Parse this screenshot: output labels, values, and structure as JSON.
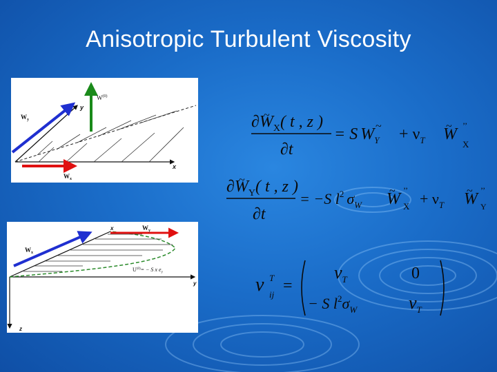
{
  "slide": {
    "title": "Anisotropic Turbulent Viscosity"
  },
  "figure_top": {
    "label_w_top": "W",
    "label_w_top_sup": "(0)",
    "label_wy": "W",
    "label_wy_sub": "y",
    "label_wx": "W",
    "label_wx_sub": "x",
    "axis_y": "y",
    "axis_x": "x"
  },
  "figure_bottom": {
    "label_wx": "W",
    "label_wx_sub": "x",
    "label_wy": "W",
    "label_wy_sub": "y",
    "axis_x": "x",
    "axis_y": "y",
    "axis_z": "z",
    "shear_label": "U",
    "shear_label_sup": "(0)",
    "shear_eq": "= − S x e",
    "shear_eq_sub": "y"
  },
  "equations": {
    "eq1": {
      "partial": "∂",
      "W": "W",
      "X": "X",
      "args": "( t , z )",
      "dt": "∂t",
      "rhs": "= S",
      "Wy": "W",
      "Y": "Y",
      "plus": "+ ν",
      "T": "T",
      "W2": "W",
      "X2": "X",
      "dprime": "’’"
    },
    "eq2": {
      "partial": "∂",
      "W": "W",
      "Y": "Y",
      "args": "( t , z )",
      "dt": "∂t",
      "rhs": "= −S l",
      "sq": "2",
      "sigma": "σ",
      "sigma_sub": "W",
      "Wx": "W",
      "X": "X",
      "plus": "+ ν",
      "T": "T",
      "W2": "W",
      "Y2": "Y",
      "dprime": "’’"
    },
    "eq3": {
      "nu": "ν",
      "sup": "T",
      "sub": "ij",
      "eq": "=",
      "m11": "ν",
      "m11_sub": "T",
      "m12": "0",
      "m21": "− S l",
      "m21_sq": "2",
      "m21_sigma": "σ",
      "m21_sub": "W",
      "m22": "ν",
      "m22_sub": "T"
    }
  },
  "colors": {
    "background": "#1a6cc8",
    "arrow_blue": "#1f2fd0",
    "arrow_red": "#e01010",
    "arrow_green": "#1a8a1a"
  }
}
